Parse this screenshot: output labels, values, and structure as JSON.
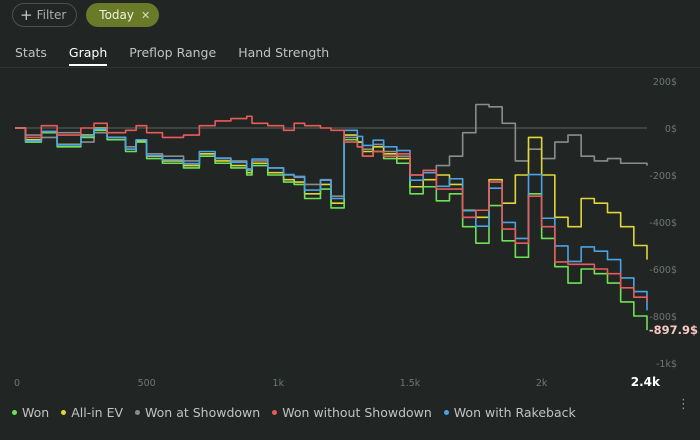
{
  "filters": {
    "add_filter_label": "Filter",
    "active_filter_label": "Today"
  },
  "tabs": [
    {
      "label": "Stats"
    },
    {
      "label": "Graph"
    },
    {
      "label": "Preflop Range"
    },
    {
      "label": "Hand Strength"
    }
  ],
  "active_tab": "Graph",
  "more_menu_label": "⋮",
  "chart_data": {
    "type": "line",
    "x_ticks": [
      "0",
      "500",
      "1k",
      "1.5k",
      "2k",
      "2.4k"
    ],
    "x_tick_values": [
      0,
      500,
      1000,
      1500,
      2000,
      2400
    ],
    "y_ticks": [
      "200$",
      "0$",
      "-200$",
      "-400$",
      "-600$",
      "-800$",
      "-1k$"
    ],
    "y_tick_values": [
      200,
      0,
      -200,
      -400,
      -600,
      -800,
      -1000
    ],
    "xlim": [
      0,
      2400
    ],
    "ylim": [
      -1000,
      200
    ],
    "grid": {
      "horizontal_zero_line": true
    },
    "end_label": "-897.9$",
    "colors": {
      "won": "#6ee257",
      "all_in_ev": "#e0d63a",
      "won_at_showdown": "#8c8c8c",
      "won_without_showdown": "#ea5a58",
      "won_with_rakeback": "#4aa3e6"
    },
    "series": [
      {
        "name": "Won",
        "key": "won",
        "x": [
          0,
          40,
          100,
          160,
          250,
          300,
          350,
          420,
          460,
          500,
          560,
          640,
          700,
          760,
          820,
          880,
          900,
          960,
          1020,
          1060,
          1100,
          1160,
          1200,
          1250,
          1300,
          1320,
          1360,
          1400,
          1450,
          1500,
          1550,
          1600,
          1650,
          1700,
          1750,
          1800,
          1850,
          1900,
          1950,
          2000,
          2050,
          2100,
          2150,
          2200,
          2250,
          2300,
          2350,
          2400
        ],
        "y": [
          0,
          -60,
          -20,
          -80,
          -40,
          -10,
          -50,
          -100,
          -60,
          -130,
          -150,
          -170,
          -120,
          -150,
          -170,
          -200,
          -160,
          -200,
          -230,
          -240,
          -300,
          -260,
          -340,
          -50,
          -80,
          -120,
          -100,
          -130,
          -150,
          -280,
          -250,
          -310,
          -280,
          -420,
          -490,
          -330,
          -480,
          -550,
          -280,
          -470,
          -590,
          -660,
          -600,
          -620,
          -660,
          -740,
          -800,
          -860
        ]
      },
      {
        "name": "All-in EV",
        "key": "all_in_ev",
        "x": [
          0,
          40,
          100,
          160,
          250,
          300,
          350,
          420,
          460,
          500,
          560,
          640,
          700,
          760,
          820,
          880,
          900,
          960,
          1020,
          1060,
          1100,
          1160,
          1200,
          1250,
          1300,
          1320,
          1360,
          1400,
          1450,
          1500,
          1550,
          1600,
          1650,
          1700,
          1750,
          1800,
          1850,
          1900,
          1950,
          2000,
          2050,
          2100,
          2150,
          2200,
          2250,
          2300,
          2350,
          2400
        ],
        "y": [
          0,
          -50,
          -15,
          -70,
          -30,
          0,
          -40,
          -90,
          -55,
          -120,
          -140,
          -160,
          -110,
          -140,
          -160,
          -190,
          -150,
          -190,
          -220,
          -230,
          -280,
          -240,
          -320,
          -30,
          -60,
          -100,
          -80,
          -110,
          -130,
          -250,
          -220,
          -200,
          -240,
          -350,
          -380,
          -220,
          -320,
          -200,
          -40,
          -200,
          -380,
          -420,
          -300,
          -320,
          -360,
          -420,
          -500,
          -560
        ]
      },
      {
        "name": "Won at Showdown",
        "key": "won_at_showdown",
        "x": [
          0,
          40,
          100,
          160,
          250,
          300,
          350,
          420,
          460,
          500,
          560,
          640,
          700,
          760,
          820,
          880,
          900,
          960,
          1020,
          1060,
          1100,
          1160,
          1200,
          1250,
          1300,
          1320,
          1360,
          1400,
          1450,
          1500,
          1550,
          1600,
          1650,
          1700,
          1750,
          1800,
          1850,
          1900,
          1950,
          2000,
          2050,
          2100,
          2150,
          2200,
          2250,
          2300,
          2350,
          2400
        ],
        "y": [
          0,
          -30,
          -40,
          -20,
          -60,
          -20,
          -40,
          -80,
          -50,
          -110,
          -120,
          -140,
          -110,
          -130,
          -140,
          -180,
          -140,
          -170,
          -200,
          -210,
          -240,
          -220,
          -290,
          -40,
          -60,
          -90,
          -70,
          -100,
          -120,
          -200,
          -190,
          -160,
          -120,
          -20,
          100,
          90,
          20,
          -140,
          -90,
          -130,
          -60,
          -30,
          -120,
          -140,
          -130,
          -150,
          -150,
          -160
        ]
      },
      {
        "name": "Won without Showdown",
        "key": "won_without_showdown",
        "x": [
          0,
          40,
          100,
          160,
          250,
          300,
          350,
          420,
          460,
          500,
          560,
          640,
          700,
          760,
          820,
          880,
          900,
          960,
          1020,
          1060,
          1100,
          1160,
          1200,
          1250,
          1300,
          1320,
          1360,
          1400,
          1450,
          1500,
          1550,
          1600,
          1650,
          1700,
          1750,
          1800,
          1850,
          1900,
          1950,
          2000,
          2050,
          2100,
          2150,
          2200,
          2250,
          2300,
          2350,
          2400
        ],
        "y": [
          0,
          -40,
          10,
          -30,
          0,
          20,
          -20,
          -10,
          10,
          -20,
          -40,
          -30,
          10,
          30,
          40,
          50,
          20,
          10,
          -10,
          20,
          10,
          0,
          -10,
          -60,
          -80,
          -120,
          -100,
          -120,
          -110,
          -200,
          -180,
          -260,
          -260,
          -380,
          -350,
          -230,
          -430,
          -490,
          -290,
          -420,
          -570,
          -580,
          -580,
          -600,
          -620,
          -680,
          -720,
          -740
        ]
      },
      {
        "name": "Won with Rakeback",
        "key": "won_with_rakeback",
        "x": [
          0,
          40,
          100,
          160,
          250,
          300,
          350,
          420,
          460,
          500,
          560,
          640,
          700,
          760,
          820,
          880,
          900,
          960,
          1020,
          1060,
          1100,
          1160,
          1200,
          1250,
          1300,
          1320,
          1360,
          1400,
          1450,
          1500,
          1550,
          1600,
          1650,
          1700,
          1750,
          1800,
          1850,
          1900,
          1950,
          2000,
          2050,
          2100,
          2150,
          2200,
          2250,
          2300,
          2350,
          2400
        ],
        "y": [
          0,
          -55,
          -15,
          -72,
          -33,
          -3,
          -40,
          -90,
          -50,
          -118,
          -136,
          -152,
          -100,
          -128,
          -146,
          -174,
          -132,
          -170,
          -198,
          -206,
          -264,
          -222,
          -300,
          -10,
          -36,
          -74,
          -52,
          -80,
          -96,
          -222,
          -190,
          -248,
          -216,
          -352,
          -418,
          -256,
          -402,
          -470,
          -198,
          -384,
          -502,
          -568,
          -506,
          -524,
          -560,
          -638,
          -696,
          -776
        ]
      }
    ]
  }
}
